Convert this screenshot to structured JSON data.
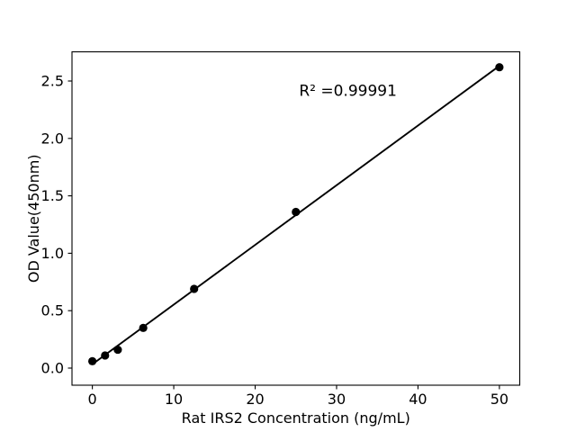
{
  "chart_data": {
    "type": "scatter",
    "title": "",
    "xlabel": "Rat IRS2 Concentration (ng/mL)",
    "ylabel": "OD Value(450nm)",
    "annotation": "R² =0.99991",
    "annotation_xy": [
      31.4,
      2.37
    ],
    "x": [
      0,
      1.5625,
      3.125,
      6.25,
      12.5,
      25,
      50
    ],
    "y": [
      0.06,
      0.11,
      0.16,
      0.35,
      0.69,
      1.36,
      2.62
    ],
    "fit_line": true,
    "xlim": [
      -2.5,
      52.5
    ],
    "ylim": [
      -0.149,
      2.754
    ],
    "xtick_values": [
      0,
      10,
      20,
      30,
      40,
      50
    ],
    "xtick_labels": [
      "0",
      "10",
      "20",
      "30",
      "40",
      "50"
    ],
    "ytick_values": [
      0.0,
      0.5,
      1.0,
      1.5,
      2.0,
      2.5
    ],
    "ytick_labels": [
      "0.0",
      "0.5",
      "1.0",
      "1.5",
      "2.0",
      "2.5"
    ],
    "grid": false,
    "legend_position": "none",
    "colors": {
      "marker": "#000000",
      "line": "#000000",
      "axis": "#000000",
      "background": "#ffffff"
    }
  }
}
